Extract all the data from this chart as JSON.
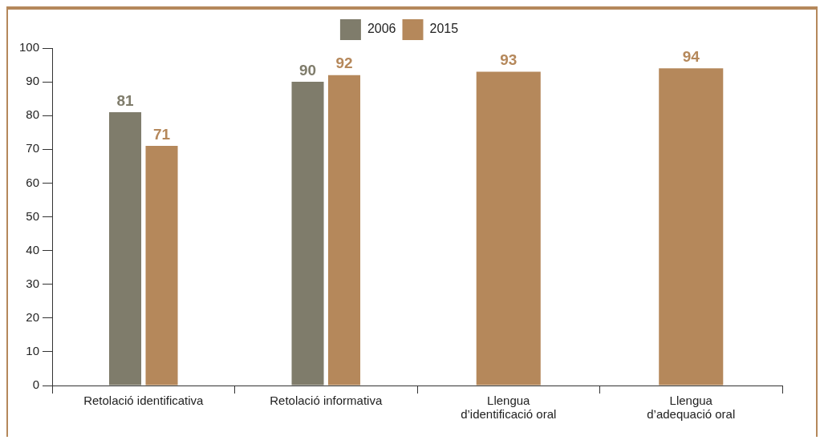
{
  "chart_data": {
    "type": "bar",
    "categories": [
      "Retolació identificativa",
      "Retolació informativa",
      "Llengua\nd’identificació oral",
      "Llengua\nd’adequació oral"
    ],
    "series": [
      {
        "name": "2006",
        "color": "#7f7c6b",
        "values": [
          81,
          90,
          null,
          null
        ]
      },
      {
        "name": "2015",
        "color": "#b5885b",
        "values": [
          71,
          92,
          93,
          94
        ]
      }
    ],
    "ylim": [
      0,
      100
    ],
    "yticks": [
      0,
      10,
      20,
      30,
      40,
      50,
      60,
      70,
      80,
      90,
      100
    ],
    "grid": false,
    "legend": "top",
    "data_labels": true
  }
}
